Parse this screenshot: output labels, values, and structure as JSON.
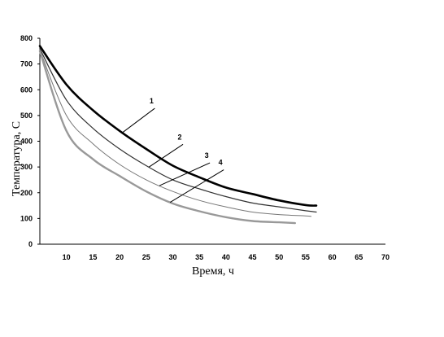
{
  "chart_data": {
    "type": "line",
    "title": "",
    "xlabel": "Время, ч",
    "ylabel": "Температура, С",
    "xlim": [
      5,
      70
    ],
    "ylim": [
      0,
      800
    ],
    "x_ticks": [
      "10",
      "15",
      "20",
      "25",
      "30",
      "35",
      "40",
      "45",
      "50",
      "55",
      "60",
      "65",
      "70"
    ],
    "y_ticks": [
      "0",
      "100",
      "200",
      "300",
      "400",
      "500",
      "600",
      "700",
      "800"
    ],
    "grid": false,
    "legend": "none",
    "series": [
      {
        "name": "1",
        "color": "#000000",
        "x": [
          5,
          10,
          15,
          20,
          25,
          30,
          35,
          40,
          45,
          50,
          55,
          57
        ],
        "y": [
          770,
          620,
          520,
          440,
          370,
          305,
          260,
          220,
          195,
          170,
          152,
          150
        ]
      },
      {
        "name": "2",
        "color": "#333333",
        "x": [
          5,
          10,
          15,
          20,
          25,
          30,
          35,
          40,
          45,
          50,
          55,
          57
        ],
        "y": [
          760,
          560,
          450,
          370,
          305,
          250,
          215,
          185,
          160,
          145,
          130,
          125
        ]
      },
      {
        "name": "3",
        "color": "#777777",
        "x": [
          5,
          10,
          15,
          20,
          25,
          30,
          35,
          40,
          45,
          50,
          55,
          56
        ],
        "y": [
          755,
          500,
          390,
          310,
          250,
          205,
          170,
          145,
          125,
          115,
          110,
          108
        ]
      },
      {
        "name": "4",
        "color": "#999999",
        "x": [
          5,
          10,
          15,
          20,
          25,
          30,
          35,
          40,
          45,
          50,
          53
        ],
        "y": [
          750,
          440,
          330,
          265,
          205,
          158,
          128,
          105,
          90,
          85,
          82
        ]
      }
    ]
  }
}
